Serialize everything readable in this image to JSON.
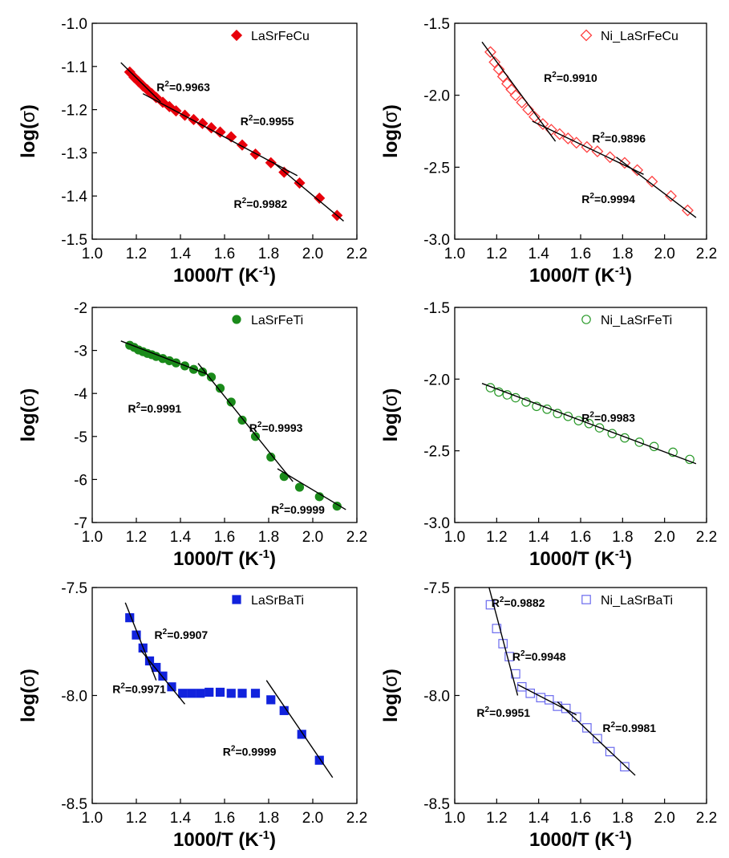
{
  "chart_data": [
    {
      "id": "p1",
      "type": "scatter",
      "xlabel": "1000/T (K-1)",
      "ylabel": "log(σ)",
      "xlim": [
        1.0,
        2.2
      ],
      "ylim": [
        -1.5,
        -1.0
      ],
      "xticks": [
        1.0,
        1.2,
        1.4,
        1.6,
        1.8,
        2.0,
        2.2
      ],
      "yticks": [
        -1.5,
        -1.4,
        -1.3,
        -1.2,
        -1.1,
        -1.0
      ],
      "xtick_labels": [
        "1.0",
        "1.2",
        "1.4",
        "1.6",
        "1.8",
        "2.0",
        "2.2"
      ],
      "ytick_labels": [
        "-1.5",
        "-1.4",
        "-1.3",
        "-1.2",
        "-1.1",
        "-1.0"
      ],
      "legend_position": "top-right",
      "series": [
        {
          "name": "LaSrFeCu",
          "marker": "diamond-filled",
          "color": "#e8000b",
          "x": [
            1.17,
            1.19,
            1.21,
            1.23,
            1.25,
            1.27,
            1.29,
            1.32,
            1.35,
            1.38,
            1.42,
            1.46,
            1.5,
            1.54,
            1.58,
            1.63,
            1.68,
            1.74,
            1.81,
            1.87,
            1.94,
            2.03,
            2.11
          ],
          "y": [
            -1.113,
            -1.125,
            -1.135,
            -1.145,
            -1.154,
            -1.163,
            -1.172,
            -1.183,
            -1.193,
            -1.203,
            -1.213,
            -1.223,
            -1.232,
            -1.242,
            -1.252,
            -1.263,
            -1.282,
            -1.303,
            -1.323,
            -1.345,
            -1.37,
            -1.405,
            -1.445
          ]
        }
      ],
      "fits": [
        {
          "x": [
            1.13,
            1.31
          ],
          "y": [
            -1.091,
            -1.182
          ]
        },
        {
          "x": [
            1.23,
            1.93
          ],
          "y": [
            -1.163,
            -1.353
          ]
        },
        {
          "x": [
            1.82,
            2.14
          ],
          "y": [
            -1.322,
            -1.458
          ]
        }
      ],
      "annotations": [
        {
          "text": "R2=0.9963",
          "x": 1.43,
          "y": -1.148
        },
        {
          "text": "R2=0.9955",
          "x": 1.81,
          "y": -1.227
        },
        {
          "text": "R2=0.9982",
          "x": 1.78,
          "y": -1.418
        }
      ]
    },
    {
      "id": "p2",
      "type": "scatter",
      "xlabel": "1000/T (K-1)",
      "ylabel": "log(σ)",
      "xlim": [
        1.0,
        2.2
      ],
      "ylim": [
        -3.0,
        -1.5
      ],
      "xticks": [
        1.0,
        1.2,
        1.4,
        1.6,
        1.8,
        2.0,
        2.2
      ],
      "yticks": [
        -3.0,
        -2.5,
        -2.0,
        -1.5
      ],
      "xtick_labels": [
        "1.0",
        "1.2",
        "1.4",
        "1.6",
        "1.8",
        "2.0",
        "2.2"
      ],
      "ytick_labels": [
        "-3.0",
        "-2.5",
        "-2.0",
        "-1.5"
      ],
      "legend_position": "top-right",
      "series": [
        {
          "name": "Ni_LaSrFeCu",
          "marker": "diamond-open",
          "color": "#ff4040",
          "x": [
            1.17,
            1.19,
            1.21,
            1.23,
            1.25,
            1.27,
            1.29,
            1.32,
            1.35,
            1.38,
            1.42,
            1.46,
            1.5,
            1.54,
            1.58,
            1.63,
            1.68,
            1.74,
            1.81,
            1.87,
            1.94,
            2.03,
            2.11
          ],
          "y": [
            -1.7,
            -1.77,
            -1.82,
            -1.87,
            -1.92,
            -1.96,
            -2.0,
            -2.05,
            -2.1,
            -2.15,
            -2.2,
            -2.24,
            -2.27,
            -2.3,
            -2.33,
            -2.36,
            -2.39,
            -2.43,
            -2.47,
            -2.52,
            -2.6,
            -2.7,
            -2.8
          ]
        }
      ],
      "fits": [
        {
          "x": [
            1.13,
            1.48
          ],
          "y": [
            -1.63,
            -2.32
          ]
        },
        {
          "x": [
            1.37,
            1.9
          ],
          "y": [
            -2.18,
            -2.55
          ]
        },
        {
          "x": [
            1.77,
            2.15
          ],
          "y": [
            -2.43,
            -2.85
          ]
        }
      ],
      "annotations": [
        {
          "text": "R2=0.9910",
          "x": 1.57,
          "y": -1.88
        },
        {
          "text": "R2=0.9896",
          "x": 1.8,
          "y": -2.3
        },
        {
          "text": "R2=0.9994",
          "x": 1.75,
          "y": -2.72
        }
      ]
    },
    {
      "id": "p3",
      "type": "scatter",
      "xlabel": "1000/T (K-1)",
      "ylabel": "log(σ)",
      "xlim": [
        1.0,
        2.2
      ],
      "ylim": [
        -7,
        -2
      ],
      "xticks": [
        1.0,
        1.2,
        1.4,
        1.6,
        1.8,
        2.0,
        2.2
      ],
      "yticks": [
        -7,
        -6,
        -5,
        -4,
        -3,
        -2
      ],
      "xtick_labels": [
        "1.0",
        "1.2",
        "1.4",
        "1.6",
        "1.8",
        "2.0",
        "2.2"
      ],
      "ytick_labels": [
        "-7",
        "-6",
        "-5",
        "-4",
        "-3",
        "-2"
      ],
      "legend_position": "top-right",
      "series": [
        {
          "name": "LaSrFeTi",
          "marker": "circle-filled",
          "color": "#1a8a1a",
          "x": [
            1.17,
            1.19,
            1.21,
            1.23,
            1.25,
            1.27,
            1.29,
            1.32,
            1.35,
            1.38,
            1.42,
            1.46,
            1.5,
            1.54,
            1.58,
            1.63,
            1.68,
            1.74,
            1.81,
            1.87,
            1.94,
            2.03,
            2.11
          ],
          "y": [
            -2.88,
            -2.93,
            -2.99,
            -3.03,
            -3.07,
            -3.1,
            -3.14,
            -3.19,
            -3.24,
            -3.29,
            -3.36,
            -3.44,
            -3.5,
            -3.62,
            -3.88,
            -4.2,
            -4.62,
            -5.0,
            -5.48,
            -5.93,
            -6.18,
            -6.4,
            -6.62
          ]
        }
      ],
      "fits": [
        {
          "x": [
            1.13,
            1.52
          ],
          "y": [
            -2.78,
            -3.55
          ]
        },
        {
          "x": [
            1.48,
            1.91
          ],
          "y": [
            -3.3,
            -6.05
          ]
        },
        {
          "x": [
            1.84,
            2.15
          ],
          "y": [
            -5.75,
            -6.7
          ]
        }
      ],
      "annotations": [
        {
          "text": "R2=0.9991",
          "x": 1.3,
          "y": -4.35
        },
        {
          "text": "R2=0.9993",
          "x": 1.85,
          "y": -4.8
        },
        {
          "text": "R2=0.9999",
          "x": 1.95,
          "y": -6.7
        }
      ]
    },
    {
      "id": "p4",
      "type": "scatter",
      "xlabel": "1000/T (K-1)",
      "ylabel": "log(σ)",
      "xlim": [
        1.0,
        2.2
      ],
      "ylim": [
        -3.0,
        -1.5
      ],
      "xticks": [
        1.0,
        1.2,
        1.4,
        1.6,
        1.8,
        2.0,
        2.2
      ],
      "yticks": [
        -3.0,
        -2.5,
        -2.0,
        -1.5
      ],
      "xtick_labels": [
        "1.0",
        "1.2",
        "1.4",
        "1.6",
        "1.8",
        "2.0",
        "2.2"
      ],
      "ytick_labels": [
        "-3.0",
        "-2.5",
        "-2.0",
        "-1.5"
      ],
      "legend_position": "top-right",
      "series": [
        {
          "name": "Ni_LaSrFeTi",
          "marker": "circle-open",
          "color": "#2a9a2a",
          "x": [
            1.17,
            1.21,
            1.25,
            1.29,
            1.34,
            1.39,
            1.44,
            1.49,
            1.54,
            1.59,
            1.64,
            1.69,
            1.75,
            1.81,
            1.88,
            1.95,
            2.04,
            2.12
          ],
          "y": [
            -2.06,
            -2.09,
            -2.11,
            -2.13,
            -2.16,
            -2.19,
            -2.21,
            -2.24,
            -2.26,
            -2.29,
            -2.31,
            -2.34,
            -2.38,
            -2.41,
            -2.44,
            -2.47,
            -2.51,
            -2.56
          ]
        }
      ],
      "fits": [
        {
          "x": [
            1.13,
            2.15
          ],
          "y": [
            -2.03,
            -2.59
          ]
        }
      ],
      "annotations": [
        {
          "text": "R2=0.9983",
          "x": 1.75,
          "y": -2.27
        }
      ]
    },
    {
      "id": "p5",
      "type": "scatter",
      "xlabel": "1000/T (K-1)",
      "ylabel": "log(σ)",
      "xlim": [
        1.0,
        2.2
      ],
      "ylim": [
        -8.5,
        -7.5
      ],
      "xticks": [
        1.0,
        1.2,
        1.4,
        1.6,
        1.8,
        2.0,
        2.2
      ],
      "yticks": [
        -8.5,
        -8.0,
        -7.5
      ],
      "xtick_labels": [
        "1.0",
        "1.2",
        "1.4",
        "1.6",
        "1.8",
        "2.0",
        "2.2"
      ],
      "ytick_labels": [
        "-8.5",
        "-8.0",
        "-7.5"
      ],
      "legend_position": "top-right",
      "series": [
        {
          "name": "LaSrBaTi",
          "marker": "square-filled",
          "color": "#1122dd",
          "x": [
            1.17,
            1.2,
            1.23,
            1.26,
            1.29,
            1.32,
            1.36,
            1.41,
            1.45,
            1.49,
            1.53,
            1.58,
            1.63,
            1.68,
            1.74,
            1.81,
            1.87,
            1.95,
            2.03
          ],
          "y": [
            -7.64,
            -7.72,
            -7.78,
            -7.84,
            -7.87,
            -7.91,
            -7.96,
            -7.99,
            -7.99,
            -7.99,
            -7.985,
            -7.985,
            -7.99,
            -7.99,
            -7.99,
            -8.02,
            -8.07,
            -8.18,
            -8.3
          ]
        }
      ],
      "fits": [
        {
          "x": [
            1.15,
            1.29
          ],
          "y": [
            -7.57,
            -7.93
          ]
        },
        {
          "x": [
            1.22,
            1.42
          ],
          "y": [
            -7.79,
            -8.04
          ]
        },
        {
          "x": [
            1.79,
            2.09
          ],
          "y": [
            -7.93,
            -8.38
          ]
        }
      ],
      "annotations": [
        {
          "text": "R2=0.9907",
          "x": 1.42,
          "y": -7.72
        },
        {
          "text": "R2=0.9971",
          "x": 1.23,
          "y": -7.97
        },
        {
          "text": "R2=0.9999",
          "x": 1.73,
          "y": -8.26
        }
      ]
    },
    {
      "id": "p6",
      "type": "scatter",
      "xlabel": "1000/T (K-1)",
      "ylabel": "log(σ)",
      "xlim": [
        1.0,
        2.2
      ],
      "ylim": [
        -8.5,
        -7.5
      ],
      "xticks": [
        1.0,
        1.2,
        1.4,
        1.6,
        1.8,
        2.0,
        2.2
      ],
      "yticks": [
        -8.5,
        -8.0,
        -7.5
      ],
      "xtick_labels": [
        "1.0",
        "1.2",
        "1.4",
        "1.6",
        "1.8",
        "2.0",
        "2.2"
      ],
      "ytick_labels": [
        "-8.5",
        "-8.0",
        "-7.5"
      ],
      "legend_position": "top-right",
      "series": [
        {
          "name": "Ni_LaSrBaTi",
          "marker": "square-open",
          "color": "#6a6aee",
          "x": [
            1.17,
            1.2,
            1.23,
            1.26,
            1.29,
            1.32,
            1.36,
            1.41,
            1.45,
            1.49,
            1.53,
            1.58,
            1.63,
            1.68,
            1.74,
            1.81
          ],
          "y": [
            -7.58,
            -7.69,
            -7.76,
            -7.82,
            -7.9,
            -7.96,
            -7.99,
            -8.01,
            -8.02,
            -8.05,
            -8.06,
            -8.1,
            -8.15,
            -8.2,
            -8.26,
            -8.33
          ]
        }
      ],
      "fits": [
        {
          "x": [
            1.15,
            1.3
          ],
          "y": [
            -7.45,
            -8.0
          ]
        },
        {
          "x": [
            1.3,
            1.58
          ],
          "y": [
            -7.95,
            -8.09
          ]
        },
        {
          "x": [
            1.49,
            1.86
          ],
          "y": [
            -8.03,
            -8.37
          ]
        }
      ],
      "annotations": [
        {
          "text": "R2=0.9882",
          "x": 1.32,
          "y": -7.57
        },
        {
          "text": "R2=0.9948",
          "x": 1.42,
          "y": -7.82
        },
        {
          "text": "R2=0.9951",
          "x": 1.25,
          "y": -8.08
        },
        {
          "text": "R2=0.9981",
          "x": 1.85,
          "y": -8.15
        }
      ]
    }
  ]
}
